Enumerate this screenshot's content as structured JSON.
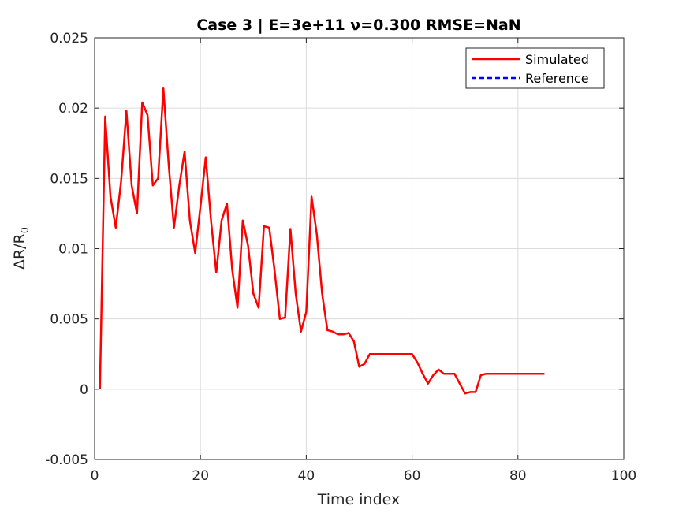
{
  "chart_data": {
    "type": "line",
    "title": "Case 3 | E=3e+11 ν=0.300 RMSE=NaN",
    "xlabel": "Time index",
    "ylabel_main": "ΔR/R",
    "ylabel_sub": "0",
    "xlim": [
      0,
      100
    ],
    "ylim": [
      -0.005,
      0.025
    ],
    "xticks": [
      0,
      20,
      40,
      60,
      80,
      100
    ],
    "xtick_labels": [
      "0",
      "20",
      "40",
      "60",
      "80",
      "100"
    ],
    "yticks": [
      -0.005,
      0,
      0.005,
      0.01,
      0.015,
      0.02,
      0.025
    ],
    "ytick_labels": [
      "-0.005",
      "0",
      "0.005",
      "0.01",
      "0.015",
      "0.02",
      "0.025"
    ],
    "grid": true,
    "legend_position": "top-right",
    "series": [
      {
        "name": "Simulated",
        "color": "#ff0000",
        "style": "solid",
        "x": [
          1,
          2,
          3,
          4,
          5,
          6,
          7,
          8,
          9,
          10,
          11,
          12,
          13,
          14,
          15,
          16,
          17,
          18,
          19,
          20,
          21,
          22,
          23,
          24,
          25,
          26,
          27,
          28,
          29,
          30,
          31,
          32,
          33,
          34,
          35,
          36,
          37,
          38,
          39,
          40,
          41,
          42,
          43,
          44,
          45,
          46,
          47,
          48,
          49,
          50,
          51,
          52,
          53,
          54,
          55,
          56,
          57,
          58,
          59,
          60,
          61,
          62,
          63,
          64,
          65,
          66,
          67,
          68,
          69,
          70,
          71,
          72,
          73,
          74,
          75,
          76,
          77,
          78,
          79,
          80,
          81,
          82,
          83,
          84,
          85
        ],
        "y": [
          0,
          0.0194,
          0.0137,
          0.0115,
          0.0148,
          0.0198,
          0.0145,
          0.0125,
          0.0204,
          0.0195,
          0.0145,
          0.015,
          0.0214,
          0.016,
          0.0115,
          0.0145,
          0.0169,
          0.012,
          0.0097,
          0.013,
          0.0165,
          0.012,
          0.0083,
          0.012,
          0.0132,
          0.0085,
          0.0058,
          0.012,
          0.0102,
          0.0068,
          0.0058,
          0.0116,
          0.0115,
          0.0085,
          0.005,
          0.0051,
          0.0114,
          0.0068,
          0.0041,
          0.0055,
          0.0137,
          0.011,
          0.0068,
          0.0042,
          0.0041,
          0.0039,
          0.0039,
          0.004,
          0.0034,
          0.0016,
          0.0018,
          0.0025,
          0.0025,
          0.0025,
          0.0025,
          0.0025,
          0.0025,
          0.0025,
          0.0025,
          0.0025,
          0.0019,
          0.0011,
          0.0004,
          0.001,
          0.0014,
          0.0011,
          0.0011,
          0.0011,
          0.0004,
          -0.0003,
          -0.0002,
          -0.0002,
          0.001,
          0.0011,
          0.0011,
          0.0011,
          0.0011,
          0.0011,
          0.0011,
          0.0011,
          0.0011,
          0.0011,
          0.0011,
          0.0011,
          0.0011
        ]
      },
      {
        "name": "Reference",
        "color": "#0000ff",
        "style": "dashed",
        "x": [],
        "y": []
      }
    ]
  }
}
